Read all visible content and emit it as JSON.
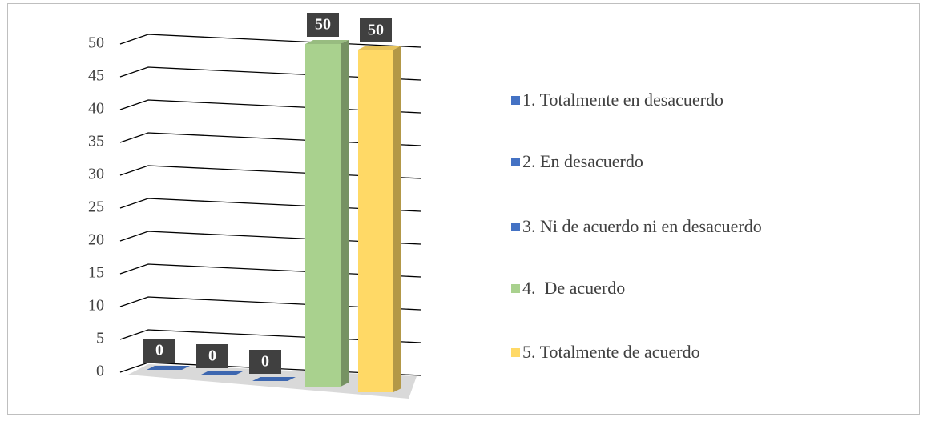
{
  "chart_data": {
    "type": "bar3d",
    "series": [
      {
        "name": "1. Totalmente en desacuerdo",
        "color": "#4472c4",
        "values": [
          0
        ]
      },
      {
        "name": "2. En desacuerdo",
        "color": "#4472c4",
        "values": [
          0
        ]
      },
      {
        "name": "3. Ni de acuerdo ni en desacuerdo",
        "color": "#4472c4",
        "values": [
          0
        ]
      },
      {
        "name": "4.  De acuerdo",
        "color": "#a9d18e",
        "values": [
          50
        ]
      },
      {
        "name": "5. Totalmente de acuerdo",
        "color": "#ffd966",
        "values": [
          50
        ]
      }
    ],
    "ylim": [
      0,
      50
    ],
    "yticks": [
      0,
      5,
      10,
      15,
      20,
      25,
      30,
      35,
      40,
      45,
      50
    ],
    "grid": true,
    "legend": "right",
    "data_labels": true
  }
}
